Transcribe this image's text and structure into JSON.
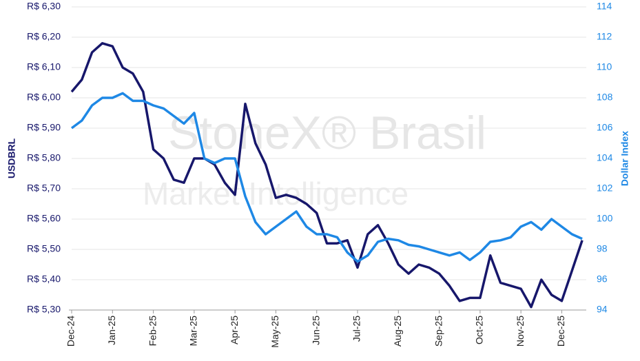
{
  "chart_data": {
    "type": "line",
    "watermark": [
      "StoneX® Brasil",
      "Market Intelligence"
    ],
    "ylabel": "USDBRL",
    "y2label": "Dollar Index",
    "xlim": [
      0,
      12.6
    ],
    "xticks": [
      {
        "value": 0,
        "label": "Dec-24"
      },
      {
        "value": 1,
        "label": "Jan-25"
      },
      {
        "value": 2,
        "label": "Feb-25"
      },
      {
        "value": 3,
        "label": "Mar-25"
      },
      {
        "value": 4,
        "label": "Apr-25"
      },
      {
        "value": 5,
        "label": "May-25"
      },
      {
        "value": 6,
        "label": "Jun-25"
      },
      {
        "value": 7,
        "label": "Jul-25"
      },
      {
        "value": 8,
        "label": "Aug-25"
      },
      {
        "value": 9,
        "label": "Sep-25"
      },
      {
        "value": 10,
        "label": "Oct-25"
      },
      {
        "value": 11,
        "label": "Nov-25"
      },
      {
        "value": 12,
        "label": "Dec-25"
      }
    ],
    "ylim": [
      5.3,
      6.3
    ],
    "yticks": [
      {
        "value": 5.3,
        "label": "R$ 5,30"
      },
      {
        "value": 5.4,
        "label": "R$ 5,40"
      },
      {
        "value": 5.5,
        "label": "R$ 5,50"
      },
      {
        "value": 5.6,
        "label": "R$ 5,60"
      },
      {
        "value": 5.7,
        "label": "R$ 5,70"
      },
      {
        "value": 5.8,
        "label": "R$ 5,80"
      },
      {
        "value": 5.9,
        "label": "R$ 5,90"
      },
      {
        "value": 6.0,
        "label": "R$ 6,00"
      },
      {
        "value": 6.1,
        "label": "R$ 6,10"
      },
      {
        "value": 6.2,
        "label": "R$ 6,20"
      },
      {
        "value": 6.3,
        "label": "R$ 6,30"
      }
    ],
    "y2lim": [
      94,
      114
    ],
    "y2ticks": [
      94,
      96,
      98,
      100,
      102,
      104,
      106,
      108,
      110,
      112,
      114
    ],
    "grid": true,
    "x": [
      0,
      0.25,
      0.5,
      0.75,
      1,
      1.25,
      1.5,
      1.75,
      2,
      2.25,
      2.5,
      2.75,
      3,
      3.25,
      3.5,
      3.75,
      4,
      4.25,
      4.5,
      4.75,
      5,
      5.25,
      5.5,
      5.75,
      6,
      6.25,
      6.5,
      6.75,
      7,
      7.25,
      7.5,
      7.75,
      8,
      8.25,
      8.5,
      8.75,
      9,
      9.25,
      9.5,
      9.75,
      10,
      10.25,
      10.5,
      10.75,
      11,
      11.25,
      11.5,
      11.75,
      12,
      12.25,
      12.5
    ],
    "series": [
      {
        "name": "USDBRL",
        "color": "#17176b",
        "values": [
          6.02,
          6.06,
          6.15,
          6.18,
          6.17,
          6.1,
          6.08,
          6.02,
          5.83,
          5.8,
          5.73,
          5.72,
          5.8,
          5.8,
          5.78,
          5.72,
          5.68,
          5.98,
          5.85,
          5.78,
          5.67,
          5.68,
          5.67,
          5.65,
          5.62,
          5.52,
          5.52,
          5.53,
          5.44,
          5.55,
          5.58,
          5.52,
          5.45,
          5.42,
          5.45,
          5.44,
          5.42,
          5.38,
          5.33,
          5.34,
          5.34,
          5.48,
          5.39,
          5.38,
          5.37,
          5.31,
          5.4,
          5.35,
          5.33,
          5.43,
          5.53
        ]
      },
      {
        "name": "Dollar Index",
        "color": "#1e88e5",
        "axis": "y2",
        "values": [
          106,
          106.5,
          107.5,
          108,
          108,
          108.3,
          107.8,
          107.8,
          107.5,
          107.3,
          106.8,
          106.3,
          107,
          104,
          103.7,
          104,
          104,
          101.5,
          99.8,
          99,
          99.5,
          100,
          100.5,
          99.5,
          99,
          99,
          98.8,
          97.8,
          97.2,
          97.6,
          98.5,
          98.7,
          98.6,
          98.3,
          98.2,
          98,
          97.8,
          97.6,
          97.8,
          97.3,
          97.8,
          98.5,
          98.6,
          98.8,
          99.5,
          99.8,
          99.3,
          100,
          99.5,
          99,
          98.7
        ]
      }
    ]
  }
}
